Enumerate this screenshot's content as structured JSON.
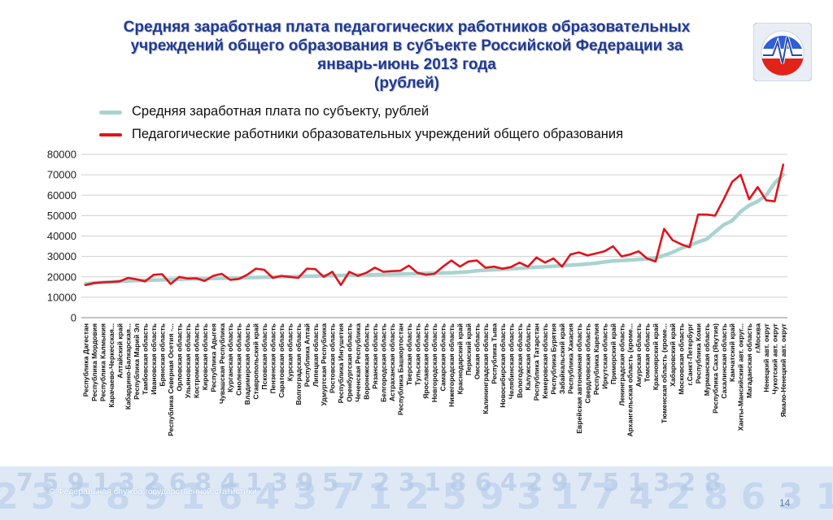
{
  "header": {
    "title_lines": [
      "Средняя заработная плата педагогических работников образовательных",
      "учреждений общего образования в субъекте Российской Федерации  за",
      "январь-июнь 2013 года",
      "(рублей)"
    ]
  },
  "legend": {
    "series1": "Средняя заработная плата по субъекту, рублей",
    "series2": "Педагогические работники образовательных учреждений общего образования"
  },
  "footer": {
    "copyright": "© Федеральная служба государственной статистики",
    "page_number": "14"
  },
  "colors": {
    "title": "#1f3a93",
    "avg_line": "#a9d3d0",
    "teacher_line": "#e0141b"
  },
  "chart_data": {
    "type": "line",
    "ylim": [
      0,
      80000
    ],
    "yticks": [
      0,
      10000,
      20000,
      30000,
      40000,
      50000,
      60000,
      70000,
      80000
    ],
    "grid": true,
    "legend_position": "top",
    "categories": [
      "Республика Дагестан",
      "Республика Мордовия",
      "Республика Калмыкия",
      "Карачаево-Черкесская...",
      "Алтайский край",
      "Кабардино-Балкарская...",
      "Республика Марий Эл",
      "Тамбовская область",
      "Ивановская область",
      "Брянская область",
      "Республика Северная Осетия -...",
      "Орловская область",
      "Ульяновская область",
      "Костромская область",
      "Кировская область",
      "Республика Адыгея",
      "Чувашская Республика",
      "Курганская область",
      "Смоленская область",
      "Владимирская область",
      "Ставропольский край",
      "Псковская область",
      "Пензенская область",
      "Саратовская область",
      "Курская область",
      "Волгоградская область",
      "Республика Алтай",
      "Липецкая область",
      "Удмуртская Республика",
      "Ростовская область",
      "Республика Ингушетия",
      "Оренбургская область",
      "Чеченская Республика",
      "Воронежская область",
      "Рязанская область",
      "Белгородская область",
      "Астраханская область",
      "Республика Башкортостан",
      "Тверская область",
      "Тульская область",
      "Ярославская область",
      "Новгородская область",
      "Самарская область",
      "Нижегородская область",
      "Краснодарский край",
      "Пермский край",
      "Омская область",
      "Калининградская область",
      "Республика Тыва",
      "Новосибирская область",
      "Челябинская область",
      "Вологодская область",
      "Калужская область",
      "Республика Татарстан",
      "Кемеровская область",
      "Республика Бурятия",
      "Забайкальский край",
      "Республика Хакасия",
      "Еврейская автономная область",
      "Свердловская область",
      "Республика Карелия",
      "Иркутская область",
      "Приморский край",
      "Ленинградская область",
      "Архангельская область (кроме...",
      "Амурская область",
      "Томская область",
      "Красноярский край",
      "Тюменская область (кроме...",
      "Хабаровский край",
      "Московская область",
      "г.Санкт-Петербург",
      "Республика Коми",
      "Мурманская область",
      "Республика Саха (Якутия)",
      "Сахалинская область",
      "Камчатский край",
      "Ханты-Мансийский авт. округ...",
      "Магаданская область",
      "г.Москва",
      "Ненецкий авт. округ",
      "Чукотский авт. округ",
      "Ямало-Ненецкий авт. округ"
    ],
    "series": [
      {
        "name": "Средняя заработная плата по субъекту, рублей",
        "values": [
          16500,
          17000,
          17300,
          17500,
          17800,
          18000,
          18200,
          18300,
          18400,
          18500,
          18700,
          18800,
          18900,
          19000,
          19100,
          19200,
          19300,
          19400,
          19500,
          19600,
          19700,
          19800,
          19900,
          20000,
          20100,
          20200,
          20300,
          20400,
          20500,
          20600,
          20700,
          20800,
          20900,
          21000,
          21100,
          21200,
          21300,
          21400,
          21500,
          21600,
          21700,
          21800,
          21900,
          22000,
          22200,
          22500,
          23000,
          23300,
          23500,
          23700,
          24000,
          24200,
          24500,
          24700,
          25000,
          25200,
          25500,
          25700,
          26000,
          26300,
          26700,
          27300,
          27800,
          28000,
          28200,
          28500,
          28800,
          29200,
          30500,
          32000,
          34000,
          35500,
          37000,
          38500,
          42000,
          45500,
          47500,
          52000,
          55000,
          57000,
          60000,
          66000,
          70000
        ]
      },
      {
        "name": "Педагогические работники образовательных учреждений общего образования",
        "values": [
          16000,
          17000,
          17300,
          17500,
          17800,
          19500,
          18800,
          17800,
          21000,
          21300,
          16500,
          20000,
          19200,
          19300,
          18000,
          20500,
          21500,
          18500,
          19000,
          21000,
          24000,
          23500,
          19500,
          20500,
          20000,
          19500,
          24000,
          23800,
          20000,
          22500,
          16000,
          22500,
          20500,
          22000,
          24500,
          22500,
          22800,
          23000,
          25500,
          22000,
          21000,
          21500,
          25000,
          28000,
          25000,
          27500,
          28000,
          24500,
          25000,
          24000,
          24800,
          27000,
          25000,
          29500,
          27000,
          29000,
          25000,
          31000,
          32000,
          30500,
          31500,
          32500,
          35000,
          30000,
          31000,
          32500,
          29000,
          27500,
          43500,
          38000,
          36000,
          34500,
          50500,
          50500,
          50000,
          58000,
          66500,
          70000,
          58000,
          64000,
          57500,
          57000,
          75000
        ]
      }
    ]
  }
}
